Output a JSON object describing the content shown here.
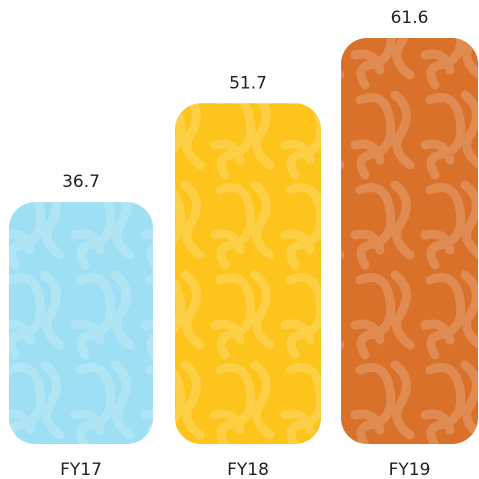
{
  "chart_data": {
    "type": "bar",
    "categories": [
      "FY17",
      "FY18",
      "FY19"
    ],
    "values": [
      36.7,
      51.7,
      61.6
    ],
    "colors": [
      "#9fdff4",
      "#fdc41c",
      "#d9712b"
    ]
  }
}
